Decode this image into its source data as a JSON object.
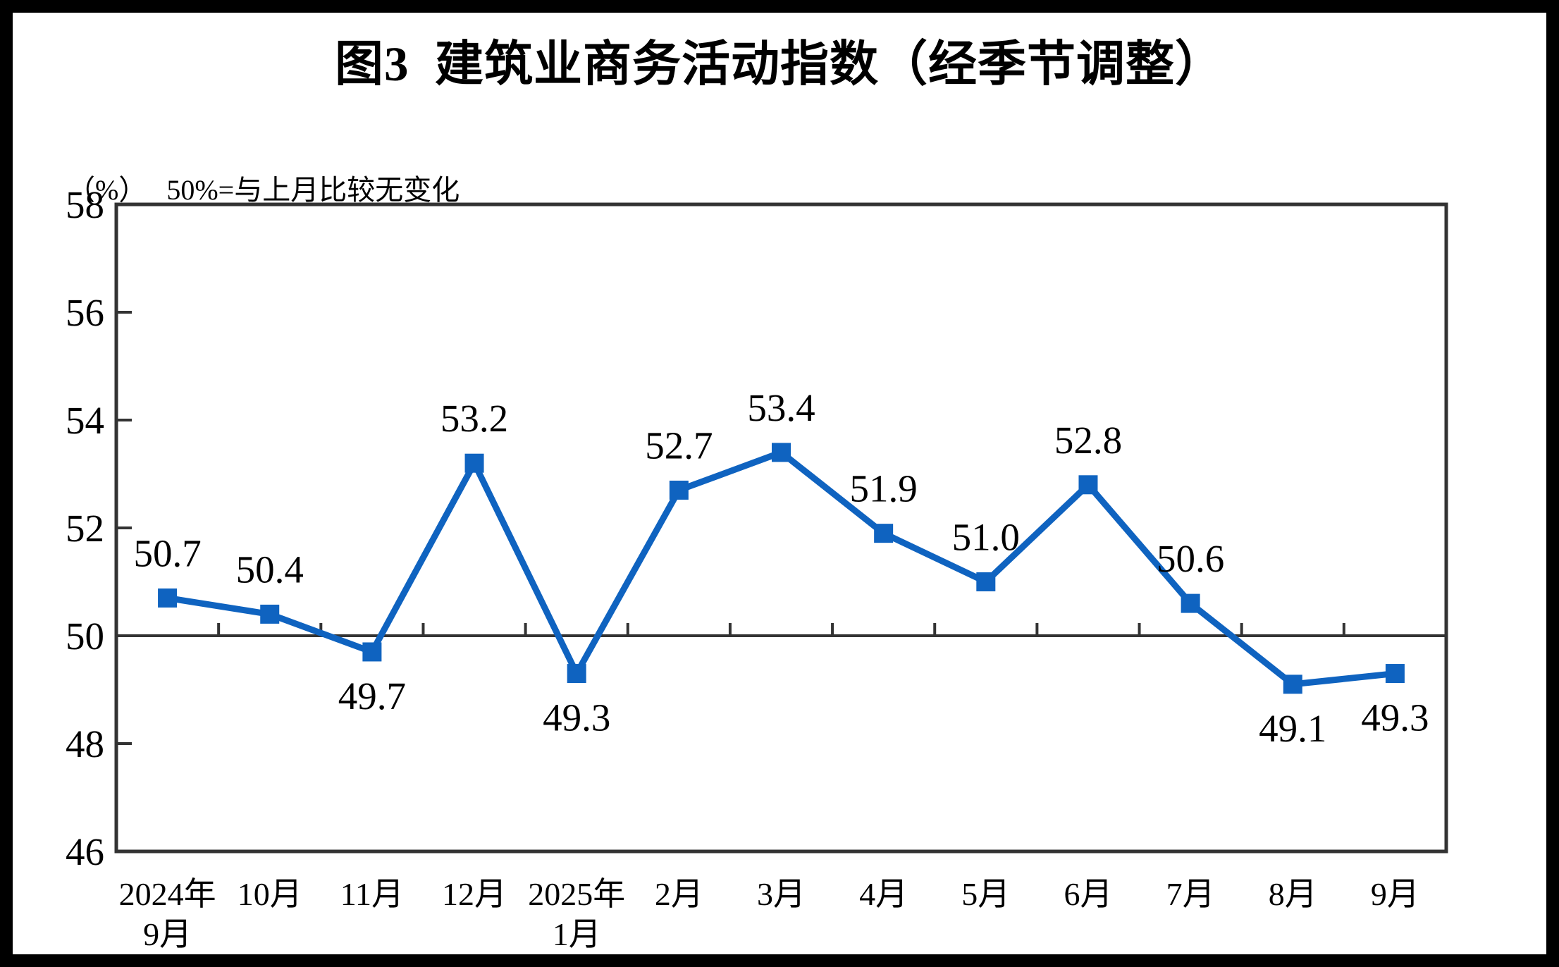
{
  "header": {
    "title": "图3  建筑业商务活动指数（经季节调整）",
    "unit_label": "（%）",
    "note": "50%=与上月比较无变化"
  },
  "chart_data": {
    "type": "line",
    "title": "图3 建筑业商务活动指数（经季节调整）",
    "unit": "%",
    "note": "50%=与上月比较无变化",
    "categories": [
      "2024年9月",
      "10月",
      "11月",
      "12月",
      "2025年1月",
      "2月",
      "3月",
      "4月",
      "5月",
      "6月",
      "7月",
      "8月",
      "9月"
    ],
    "x_tick_lines": [
      [
        "2024年",
        "9月"
      ],
      [
        "10月"
      ],
      [
        "11月"
      ],
      [
        "12月"
      ],
      [
        "2025年",
        "1月"
      ],
      [
        "2月"
      ],
      [
        "3月"
      ],
      [
        "4月"
      ],
      [
        "5月"
      ],
      [
        "6月"
      ],
      [
        "7月"
      ],
      [
        "8月"
      ],
      [
        "9月"
      ]
    ],
    "series": [
      {
        "name": "建筑业商务活动指数（经季节调整）",
        "values": [
          50.7,
          50.4,
          49.7,
          53.2,
          49.3,
          52.7,
          53.4,
          51.9,
          51.0,
          52.8,
          50.6,
          49.1,
          49.3
        ]
      }
    ],
    "data_labels": [
      "50.7",
      "50.4",
      "49.7",
      "53.2",
      "49.3",
      "52.7",
      "53.4",
      "51.9",
      "51.0",
      "52.8",
      "50.6",
      "49.1",
      "49.3"
    ],
    "label_positions": [
      "above",
      "above",
      "below",
      "above",
      "below",
      "above",
      "above",
      "above",
      "above",
      "above",
      "above",
      "below",
      "below"
    ],
    "ylim": [
      46,
      58
    ],
    "yticks": [
      46,
      48,
      50,
      52,
      54,
      56,
      58
    ],
    "baseline": 50,
    "grid": false,
    "legend_position": "none",
    "marker": "square",
    "colors": {
      "line": "#0F63C0",
      "axis": "#333333",
      "text": "#000000",
      "page_border": "#000000",
      "background": "#ffffff"
    }
  }
}
